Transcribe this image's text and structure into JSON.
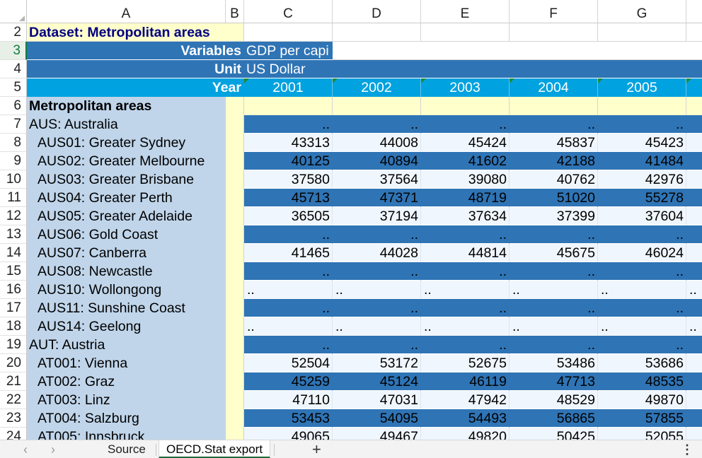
{
  "app": {
    "name": "Excel spreadsheet"
  },
  "columns": [
    "A",
    "B",
    "C",
    "D",
    "E",
    "F",
    "G"
  ],
  "rows": [
    {
      "num": "2",
      "type": "dataset",
      "A": "Dataset: Metropolitan areas"
    },
    {
      "num": "3",
      "type": "variables",
      "A": "Variables",
      "C": "GDP per capi"
    },
    {
      "num": "4",
      "type": "unit",
      "A": "Unit",
      "C": "US Dollar"
    },
    {
      "num": "5",
      "type": "year",
      "A": "Year",
      "years": [
        "2001",
        "2002",
        "2003",
        "2004",
        "2005"
      ]
    },
    {
      "num": "6",
      "type": "section",
      "A": "Metropolitan areas"
    },
    {
      "num": "7",
      "type": "dark",
      "A": "AUS: Australia",
      "indent": false,
      "vals": [
        "..",
        "..",
        "..",
        "..",
        ".."
      ],
      "dots_left": false
    },
    {
      "num": "8",
      "type": "light",
      "A": "AUS01: Greater Sydney",
      "indent": true,
      "vals": [
        "43313",
        "44008",
        "45424",
        "45837",
        "45423"
      ],
      "dots_left": false
    },
    {
      "num": "9",
      "type": "dark",
      "A": "AUS02: Greater Melbourne",
      "indent": true,
      "vals": [
        "40125",
        "40894",
        "41602",
        "42188",
        "41484"
      ],
      "dots_left": false
    },
    {
      "num": "10",
      "type": "light",
      "A": "AUS03: Greater Brisbane",
      "indent": true,
      "vals": [
        "37580",
        "37564",
        "39080",
        "40762",
        "42976"
      ],
      "dots_left": false
    },
    {
      "num": "11",
      "type": "dark",
      "A": "AUS04: Greater Perth",
      "indent": true,
      "vals": [
        "45713",
        "47371",
        "48719",
        "51020",
        "55278"
      ],
      "dots_left": false
    },
    {
      "num": "12",
      "type": "light",
      "A": "AUS05: Greater Adelaide",
      "indent": true,
      "vals": [
        "36505",
        "37194",
        "37634",
        "37399",
        "37604"
      ],
      "dots_left": false
    },
    {
      "num": "13",
      "type": "dark",
      "A": "AUS06: Gold Coast",
      "indent": true,
      "vals": [
        "..",
        "..",
        "..",
        "..",
        ".."
      ],
      "dots_left": false
    },
    {
      "num": "14",
      "type": "light",
      "A": "AUS07: Canberra",
      "indent": true,
      "vals": [
        "41465",
        "44028",
        "44814",
        "45675",
        "46024"
      ],
      "dots_left": false
    },
    {
      "num": "15",
      "type": "dark",
      "A": "AUS08: Newcastle",
      "indent": true,
      "vals": [
        "..",
        "..",
        "..",
        "..",
        ".."
      ],
      "dots_left": false
    },
    {
      "num": "16",
      "type": "light",
      "A": "AUS10: Wollongong",
      "indent": true,
      "vals": [
        "..",
        "..",
        "..",
        "..",
        ".."
      ],
      "dots_left": true
    },
    {
      "num": "17",
      "type": "dark",
      "A": "AUS11: Sunshine Coast",
      "indent": true,
      "vals": [
        "..",
        "..",
        "..",
        "..",
        ".."
      ],
      "dots_left": false
    },
    {
      "num": "18",
      "type": "light",
      "A": "AUS14: Geelong",
      "indent": true,
      "vals": [
        "..",
        "..",
        "..",
        "..",
        ".."
      ],
      "dots_left": true
    },
    {
      "num": "19",
      "type": "dark",
      "A": "AUT: Austria",
      "indent": false,
      "vals": [
        "..",
        "..",
        "..",
        "..",
        ".."
      ],
      "dots_left": false
    },
    {
      "num": "20",
      "type": "light",
      "A": "AT001: Vienna",
      "indent": true,
      "vals": [
        "52504",
        "53172",
        "52675",
        "53486",
        "53686"
      ],
      "dots_left": false
    },
    {
      "num": "21",
      "type": "dark",
      "A": "AT002: Graz",
      "indent": true,
      "vals": [
        "45259",
        "45124",
        "46119",
        "47713",
        "48535"
      ],
      "dots_left": false
    },
    {
      "num": "22",
      "type": "light",
      "A": "AT003: Linz",
      "indent": true,
      "vals": [
        "47110",
        "47031",
        "47942",
        "48529",
        "49870"
      ],
      "dots_left": false
    },
    {
      "num": "23",
      "type": "dark",
      "A": "AT004: Salzburg",
      "indent": true,
      "vals": [
        "53453",
        "54095",
        "54493",
        "56865",
        "57855"
      ],
      "dots_left": false
    },
    {
      "num": "24",
      "type": "light",
      "A": "AT005: Innsbruck",
      "indent": true,
      "vals": [
        "49065",
        "49467",
        "49820",
        "50425",
        "52055"
      ],
      "dots_left": false
    }
  ],
  "active_row": "3",
  "sheet_tabs": {
    "prev_glyph": "‹",
    "next_glyph": "›",
    "tabs": [
      "Source",
      "OECD.Stat export"
    ],
    "active": "OECD.Stat export",
    "add_glyph": "+",
    "more_glyph": "⋮"
  },
  "colors": {
    "dataset_bg": "#ffffcc",
    "dataset_fg": "#000080",
    "header_blue": "#2f74b5",
    "year_blue": "#00a2e0",
    "label_col_bg": "#c0d5ea",
    "b_col_bg": "#ffffcc",
    "light_row": "#f0f6fd",
    "dark_row": "#2f74b5",
    "gridline": "#d4d4d4",
    "active_green": "#107c41"
  }
}
